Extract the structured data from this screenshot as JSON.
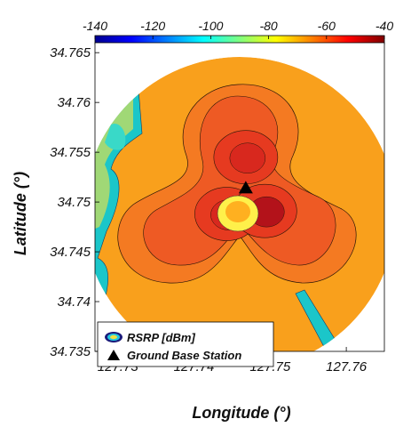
{
  "chart_data": {
    "type": "heatmap",
    "title": "",
    "xlabel": "Longitude (°)",
    "ylabel": "Latitude (°)",
    "xlim": [
      127.727,
      127.765
    ],
    "ylim": [
      34.735,
      34.766
    ],
    "xticks": [
      127.73,
      127.74,
      127.75,
      127.76
    ],
    "yticks": [
      34.735,
      34.74,
      34.745,
      34.75,
      34.755,
      34.76,
      34.765
    ],
    "xtick_labels": [
      "127.73",
      "127.74",
      "127.75",
      "127.76"
    ],
    "ytick_labels": [
      "34.735",
      "34.74",
      "34.745",
      "34.75",
      "34.755",
      "34.76",
      "34.765"
    ],
    "colorbar": {
      "label": "RSRP [dBm]",
      "range": [
        -140,
        -40
      ],
      "ticks": [
        -140,
        -120,
        -100,
        -80,
        -60,
        -40
      ],
      "tick_labels": [
        "-140",
        "-120",
        "-100",
        "-80",
        "-60",
        "-40"
      ],
      "colormap": "jet"
    },
    "coverage_area": {
      "center": [
        127.7465,
        34.7505
      ],
      "radius_deg_lon": 0.0205
    },
    "base_station": {
      "lon": 127.7468,
      "lat": 34.7514,
      "label": "Ground Base Station"
    },
    "lobes": [
      {
        "lon": 127.7468,
        "lat": 34.7545,
        "rsrp": -50
      },
      {
        "lon": 127.7443,
        "lat": 34.7488,
        "rsrp": -48
      },
      {
        "lon": 127.7493,
        "lat": 34.7491,
        "rsrp": -47
      }
    ],
    "background_rsrp": -58,
    "legend": {
      "position": "bottom-left",
      "entries": [
        "RSRP [dBm]",
        "Ground Base Station"
      ]
    }
  }
}
